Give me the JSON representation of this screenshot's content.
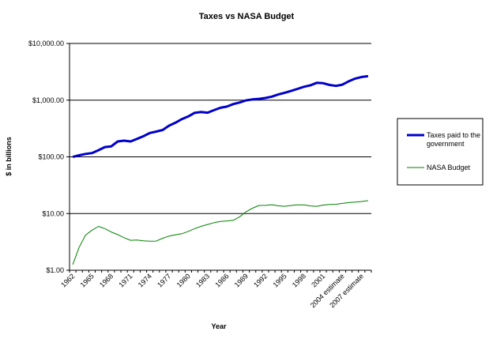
{
  "chart_data": {
    "type": "line",
    "title": "Taxes vs NASA Budget",
    "xlabel": "Year",
    "ylabel": "$ in billions",
    "yscale": "log",
    "ylim": [
      1,
      10000
    ],
    "yticks": [
      {
        "value": 1,
        "label": "$1.00"
      },
      {
        "value": 10,
        "label": "$10.00"
      },
      {
        "value": 100,
        "label": "$100.00"
      },
      {
        "value": 1000,
        "label": "$1,000.00"
      },
      {
        "value": 10000,
        "label": "$10,000.00"
      }
    ],
    "gridlines": "horizontal",
    "legend_position": "right",
    "categories": [
      "1962",
      "1963",
      "1964",
      "1965",
      "1966",
      "1967",
      "1968",
      "1969",
      "1970",
      "1971",
      "1972",
      "1973",
      "1974",
      "1975",
      "1976",
      "1977",
      "1978",
      "1979",
      "1980",
      "1981",
      "1982",
      "1983",
      "1984",
      "1985",
      "1986",
      "1987",
      "1988",
      "1989",
      "1990",
      "1991",
      "1992",
      "1993",
      "1994",
      "1995",
      "1996",
      "1997",
      "1998",
      "1999",
      "2000",
      "2001",
      "2002",
      "2003",
      "2004 estimate",
      "2005 estimate",
      "2006 estimate",
      "2007 estimate",
      "2008 estimate"
    ],
    "tick_labels": [
      {
        "index": 0,
        "label": "1962"
      },
      {
        "index": 3,
        "label": "1965"
      },
      {
        "index": 6,
        "label": "1968"
      },
      {
        "index": 9,
        "label": "1971"
      },
      {
        "index": 12,
        "label": "1974"
      },
      {
        "index": 15,
        "label": "1977"
      },
      {
        "index": 18,
        "label": "1980"
      },
      {
        "index": 21,
        "label": "1983"
      },
      {
        "index": 24,
        "label": "1986"
      },
      {
        "index": 27,
        "label": "1989"
      },
      {
        "index": 30,
        "label": "1992"
      },
      {
        "index": 33,
        "label": "1995"
      },
      {
        "index": 36,
        "label": "1998"
      },
      {
        "index": 39,
        "label": "2001"
      },
      {
        "index": 42,
        "label": "2004 estimate"
      },
      {
        "index": 45,
        "label": "2007 estimate"
      }
    ],
    "series": [
      {
        "name": "Taxes paid to the government",
        "color": "#0000cc",
        "values": [
          99.7,
          106.6,
          112.6,
          116.8,
          130.8,
          148.8,
          153.0,
          186.9,
          192.8,
          187.1,
          207.3,
          230.8,
          263.2,
          279.1,
          298.1,
          355.6,
          399.6,
          463.3,
          517.1,
          599.3,
          617.8,
          600.6,
          666.4,
          734.0,
          769.2,
          854.3,
          909.2,
          991.1,
          1032.0,
          1055.0,
          1091.2,
          1154.3,
          1258.6,
          1351.8,
          1453.1,
          1579.2,
          1721.7,
          1827.5,
          2025.2,
          1991.1,
          1853.2,
          1782.3,
          1880.1,
          2153.6,
          2406.9,
          2568.0,
          2650.0
        ]
      },
      {
        "name": "NASA Budget",
        "color": "#008000",
        "values": [
          1.26,
          2.55,
          4.17,
          5.09,
          5.93,
          5.43,
          4.72,
          4.25,
          3.75,
          3.38,
          3.42,
          3.31,
          3.25,
          3.27,
          3.67,
          4.0,
          4.22,
          4.41,
          4.85,
          5.42,
          5.95,
          6.42,
          6.9,
          7.25,
          7.4,
          7.59,
          8.77,
          10.8,
          12.43,
          13.88,
          13.96,
          14.3,
          13.7,
          13.4,
          13.88,
          14.2,
          14.2,
          13.64,
          13.4,
          14.1,
          14.5,
          14.6,
          15.1,
          15.6,
          15.9,
          16.3,
          16.9
        ]
      }
    ]
  }
}
